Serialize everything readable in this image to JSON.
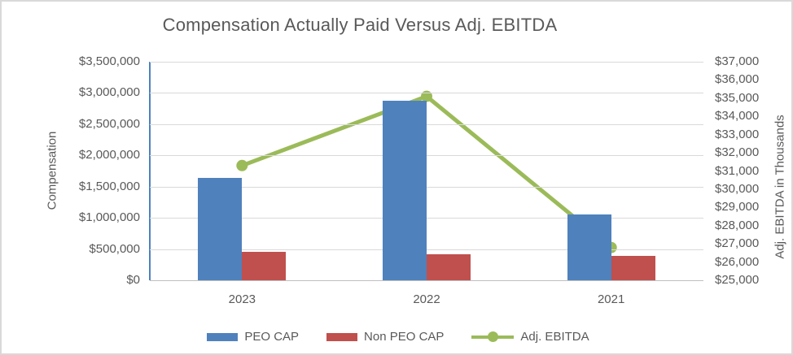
{
  "title": "Compensation Actually Paid Versus Adj. EBITDA",
  "colors": {
    "peo_cap": "#4f81bd",
    "non_peo_cap": "#c0504d",
    "adj_ebitda": "#9bbb59",
    "text": "#595959",
    "gridline": "#d9d9d9",
    "axis_line": "#bfbfbf"
  },
  "chart_data": {
    "type": "bar",
    "title": "Compensation Actually Paid Versus Adj. EBITDA",
    "categories": [
      "2023",
      "2022",
      "2021"
    ],
    "series": [
      {
        "name": "PEO CAP",
        "type": "bar",
        "axis": "left",
        "color": "#4f81bd",
        "values": [
          1640000,
          2880000,
          1050000
        ]
      },
      {
        "name": "Non PEO CAP",
        "type": "bar",
        "axis": "left",
        "color": "#c0504d",
        "values": [
          460000,
          415000,
          385000
        ]
      },
      {
        "name": "Adj. EBITDA",
        "type": "line",
        "axis": "right",
        "color": "#9bbb59",
        "values": [
          31300,
          35100,
          26800
        ]
      }
    ],
    "left_axis": {
      "label": "Compensation",
      "min": 0,
      "max": 3500000,
      "tick_step": 500000,
      "ticks": [
        "$3,500,000",
        "$3,000,000",
        "$2,500,000",
        "$2,000,000",
        "$1,500,000",
        "$1,000,000",
        "$500,000",
        "$0"
      ]
    },
    "right_axis": {
      "label": "Adj. EBITDA in Thousands",
      "min": 25000,
      "max": 37000,
      "tick_step": 1000,
      "ticks": [
        "$37,000",
        "$36,000",
        "$35,000",
        "$34,000",
        "$33,000",
        "$32,000",
        "$31,000",
        "$30,000",
        "$29,000",
        "$28,000",
        "$27,000",
        "$26,000",
        "$25,000"
      ]
    },
    "legend_position": "bottom",
    "grid": true
  }
}
